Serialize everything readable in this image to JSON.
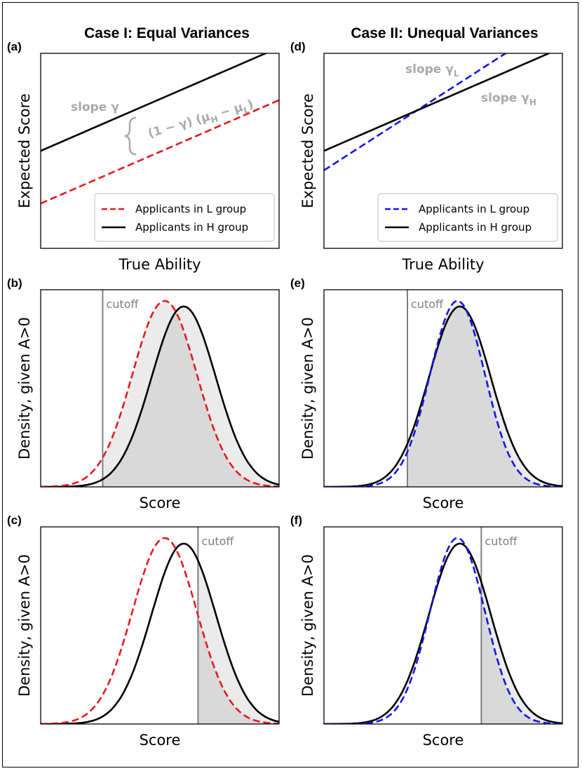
{
  "columns": {
    "left_title": "Case I: Equal Variances",
    "right_title": "Case II: Unequal Variances"
  },
  "colors": {
    "L_case1": "#e41a1c",
    "L_case2": "#1515e6",
    "H": "#000000",
    "cutoff": "#7f7f7f",
    "annotation": "#a9a9a9",
    "fill_light": "#ebebeb",
    "fill_dark": "#d9d9d9"
  },
  "chart_data": [
    {
      "id": "a",
      "panel_label": "(a)",
      "type": "line",
      "xlabel": "True Ability",
      "ylabel": "Expected Score",
      "xlim": [
        0,
        1
      ],
      "ylim": [
        0,
        1
      ],
      "series": [
        {
          "name": "L",
          "style": "dashed",
          "x": [
            0,
            1
          ],
          "y": [
            0.23,
            0.76
          ]
        },
        {
          "name": "H",
          "style": "solid",
          "x": [
            0,
            1
          ],
          "y": [
            0.5,
            1.03
          ]
        }
      ],
      "legend": [
        "Applicants in L group",
        "Applicants in H group"
      ],
      "annotations": {
        "slope_label": "slope γ",
        "gap_main": "(1 − γ) (μ",
        "gap_sub1": "H",
        "gap_mid": " − μ",
        "gap_sub2": "L",
        "gap_end": ")"
      }
    },
    {
      "id": "b",
      "panel_label": "(b)",
      "type": "area",
      "xlabel": "Score",
      "ylabel": "Density, given A>0",
      "xlim": [
        0,
        10
      ],
      "ylim": [
        0,
        1.06
      ],
      "cutoff": 2.6,
      "cutoff_label": "cutoff",
      "series": [
        {
          "name": "L",
          "style": "dashed",
          "mean": 5.2,
          "sd": 1.35,
          "peak": 1.0
        },
        {
          "name": "H",
          "style": "solid",
          "mean": 6.0,
          "sd": 1.35,
          "peak": 0.97
        }
      ]
    },
    {
      "id": "c",
      "panel_label": "(c)",
      "type": "area",
      "xlabel": "Score",
      "ylabel": "Density, given A>0",
      "xlim": [
        0,
        10
      ],
      "ylim": [
        0,
        1.06
      ],
      "cutoff": 6.6,
      "cutoff_label": "cutoff",
      "series": [
        {
          "name": "L",
          "style": "dashed",
          "mean": 5.2,
          "sd": 1.35,
          "peak": 1.0
        },
        {
          "name": "H",
          "style": "solid",
          "mean": 6.0,
          "sd": 1.35,
          "peak": 0.97
        }
      ]
    },
    {
      "id": "d",
      "panel_label": "(d)",
      "type": "line",
      "xlabel": "True Ability",
      "ylabel": "Expected Score",
      "xlim": [
        0,
        1
      ],
      "ylim": [
        0,
        1
      ],
      "series": [
        {
          "name": "L",
          "style": "dashed",
          "x": [
            0,
            0.8
          ],
          "y": [
            0.4,
            1.03
          ]
        },
        {
          "name": "H",
          "style": "solid",
          "x": [
            0,
            1
          ],
          "y": [
            0.5,
            1.03
          ]
        }
      ],
      "legend": [
        "Applicants in L group",
        "Applicants in H group"
      ],
      "annotations": {
        "slope_L": "slope γ",
        "slope_L_sub": "L",
        "slope_H": "slope γ",
        "slope_H_sub": "H"
      }
    },
    {
      "id": "e",
      "panel_label": "(e)",
      "type": "area",
      "xlabel": "Score",
      "ylabel": "Density, given A>0",
      "xlim": [
        0,
        10
      ],
      "ylim": [
        0,
        1.06
      ],
      "cutoff": 3.5,
      "cutoff_label": "cutoff",
      "series": [
        {
          "name": "L",
          "style": "dashed",
          "mean": 5.6,
          "sd": 1.15,
          "peak": 1.0
        },
        {
          "name": "H",
          "style": "solid",
          "mean": 5.7,
          "sd": 1.3,
          "peak": 0.97
        }
      ]
    },
    {
      "id": "f",
      "panel_label": "(f)",
      "type": "area",
      "xlabel": "Score",
      "ylabel": "Density, given A>0",
      "xlim": [
        0,
        10
      ],
      "ylim": [
        0,
        1.06
      ],
      "cutoff": 6.6,
      "cutoff_label": "cutoff",
      "series": [
        {
          "name": "L",
          "style": "dashed",
          "mean": 5.6,
          "sd": 1.15,
          "peak": 1.0
        },
        {
          "name": "H",
          "style": "solid",
          "mean": 5.7,
          "sd": 1.3,
          "peak": 0.97
        }
      ]
    }
  ]
}
